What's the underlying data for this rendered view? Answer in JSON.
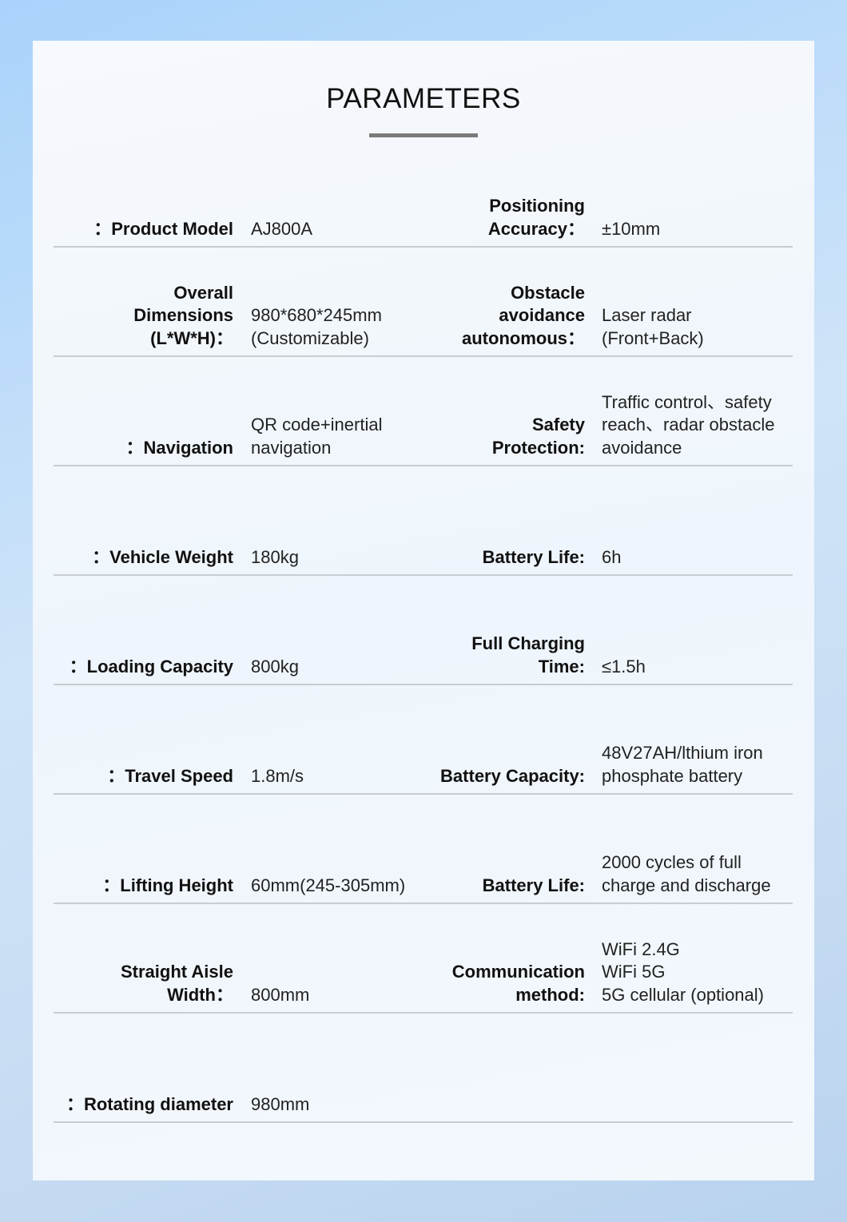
{
  "title": "PARAMETERS",
  "rows": [
    {
      "l1": "Product Model：",
      "v1": "AJ800A",
      "l2": "Positioning\nAccuracy：",
      "v2": "±10mm"
    },
    {
      "l1": "Overall\nDimensions\n(L*W*H)：",
      "v1": "980*680*245mm\n  (Customizable)",
      "l2": "Obstacle\navoidance\nautonomous：",
      "v2": "Laser radar\n  (Front+Back)"
    },
    {
      "l1": "Navigation：",
      "v1": "QR code+inertial\nnavigation",
      "l2": "Safety\nProtection:",
      "v2": "Traffic control、safety\nreach、radar obstacle\navoidance"
    },
    {
      "l1": "Vehicle Weight：",
      "v1": "180kg",
      "l2": "Battery Life:",
      "v2": "6h"
    },
    {
      "l1": "Loading Capacity：",
      "v1": "800kg",
      "l2": "Full Charging\nTime:",
      "v2": "≤1.5h"
    },
    {
      "l1": "Travel Speed：",
      "v1": "1.8m/s",
      "l2": "Battery Capacity:",
      "v2": "48V27AH/lthium iron\nphosphate battery"
    },
    {
      "l1": "Lifting Height：",
      "v1": "60mm(245-305mm)",
      "l2": "Battery Life:",
      "v2": "2000 cycles of full\ncharge and discharge"
    },
    {
      "l1": "Straight Aisle\nWidth：",
      "v1": "800mm",
      "l2": "Communication\nmethod:",
      "v2": "WiFi 2.4G\nWiFi 5G\n5G cellular (optional)"
    },
    {
      "l1": "Rotating diameter：",
      "v1": "980mm",
      "l2": "",
      "v2": ""
    }
  ]
}
